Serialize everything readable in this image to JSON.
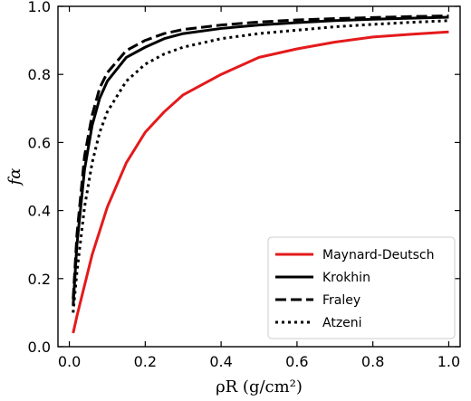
{
  "chart_data": {
    "type": "line",
    "title": "",
    "xlabel": "ρR (g/cm²)",
    "ylabel": "fα",
    "xlim": [
      -0.03,
      1.03
    ],
    "ylim": [
      0.0,
      1.0
    ],
    "x_ticks": [
      0.0,
      0.2,
      0.4,
      0.6,
      0.8,
      1.0
    ],
    "x_tick_labels": [
      "0.0",
      "0.2",
      "0.4",
      "0.6",
      "0.8",
      "1.0"
    ],
    "y_ticks": [
      0.0,
      0.2,
      0.4,
      0.6,
      0.8,
      1.0
    ],
    "y_tick_labels": [
      "0.0",
      "0.2",
      "0.4",
      "0.6",
      "0.8",
      "1.0"
    ],
    "grid": false,
    "legend_position": "bottom-right",
    "x": [
      0.01,
      0.02,
      0.04,
      0.06,
      0.08,
      0.1,
      0.15,
      0.2,
      0.25,
      0.3,
      0.4,
      0.5,
      0.6,
      0.7,
      0.8,
      0.9,
      1.0
    ],
    "series": [
      {
        "name": "Maynard-Deutsch",
        "color": "#e41a1c",
        "style": "solid",
        "values": [
          0.04,
          0.09,
          0.18,
          0.27,
          0.34,
          0.41,
          0.54,
          0.63,
          0.69,
          0.74,
          0.8,
          0.85,
          0.875,
          0.895,
          0.91,
          0.918,
          0.925
        ]
      },
      {
        "name": "Krokhin",
        "color": "#000000",
        "style": "solid",
        "values": [
          0.12,
          0.3,
          0.52,
          0.65,
          0.73,
          0.78,
          0.85,
          0.88,
          0.905,
          0.92,
          0.935,
          0.945,
          0.952,
          0.958,
          0.962,
          0.965,
          0.968
        ]
      },
      {
        "name": "Fraley",
        "color": "#000000",
        "style": "dashed",
        "values": [
          0.14,
          0.33,
          0.56,
          0.68,
          0.76,
          0.805,
          0.87,
          0.9,
          0.92,
          0.932,
          0.945,
          0.954,
          0.96,
          0.964,
          0.967,
          0.97,
          0.972
        ]
      },
      {
        "name": "Atzeni",
        "color": "#000000",
        "style": "dotted",
        "values": [
          0.1,
          0.22,
          0.41,
          0.54,
          0.63,
          0.69,
          0.78,
          0.83,
          0.86,
          0.88,
          0.905,
          0.92,
          0.93,
          0.94,
          0.947,
          0.953,
          0.958
        ]
      }
    ]
  }
}
